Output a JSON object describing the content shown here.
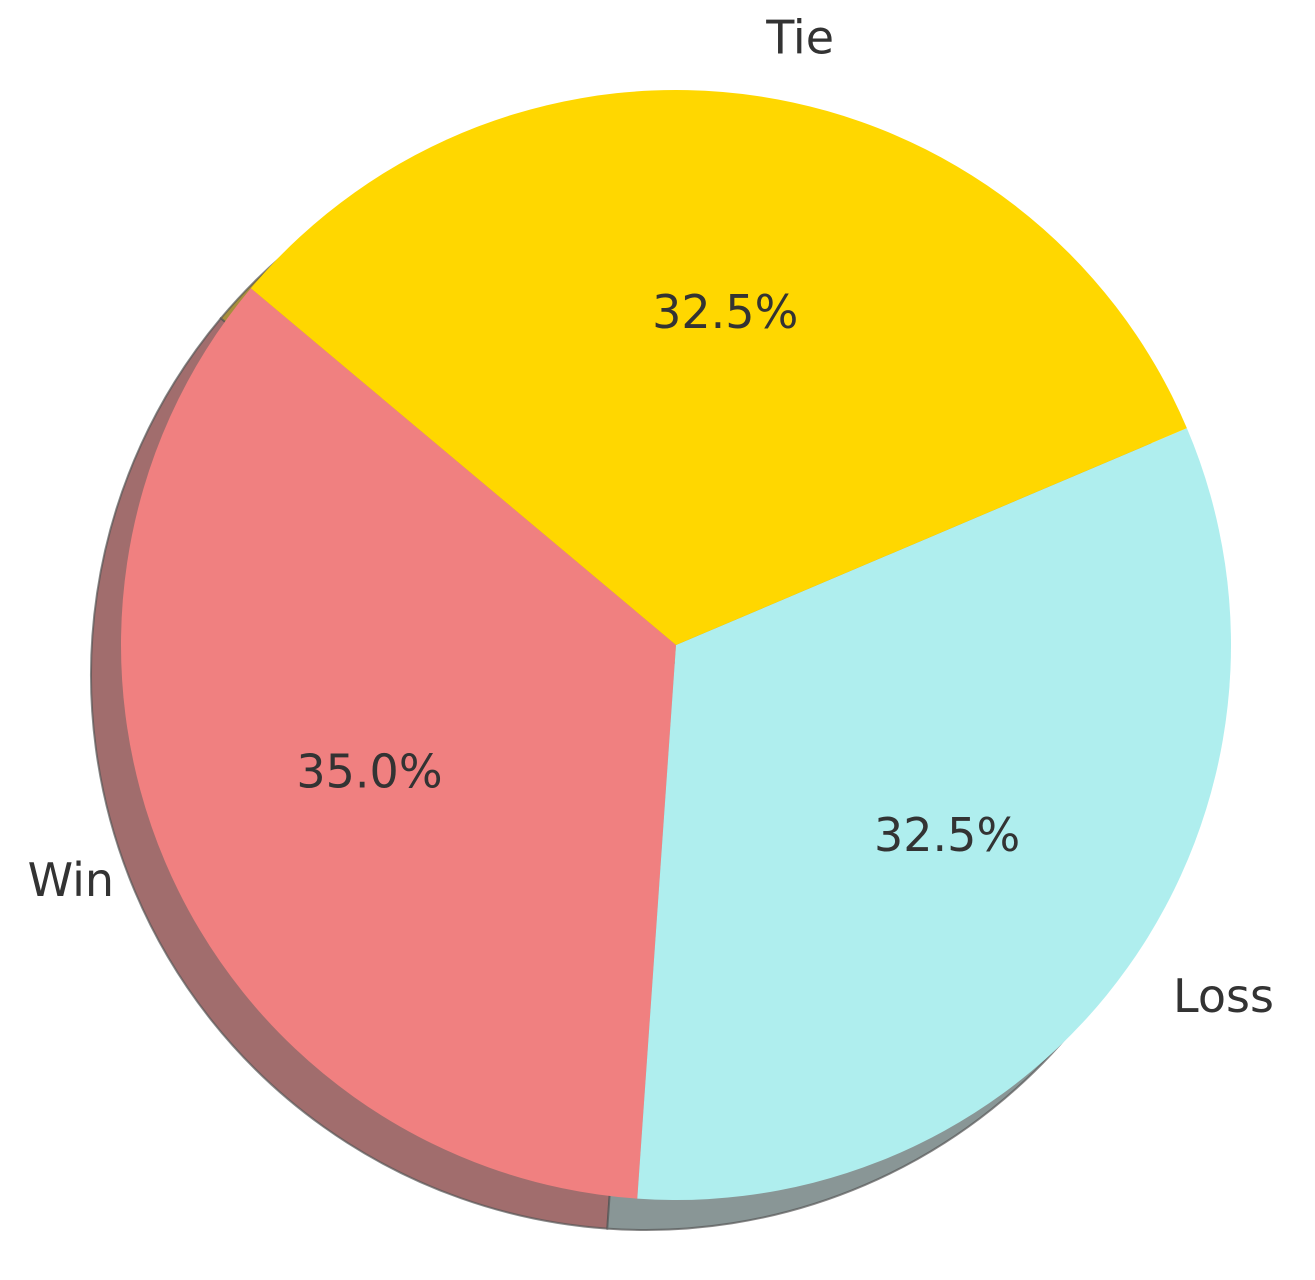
{
  "chart_data": {
    "type": "pie",
    "categories": [
      "Win",
      "Loss",
      "Tie"
    ],
    "values": [
      35.0,
      32.5,
      32.5
    ],
    "percent_labels": [
      "35.0%",
      "32.5%",
      "32.5%"
    ],
    "colors": [
      "#f08080",
      "#afeeee",
      "#ffd700"
    ],
    "start_angle_deg": 140,
    "shadow": true,
    "legend": "none"
  }
}
